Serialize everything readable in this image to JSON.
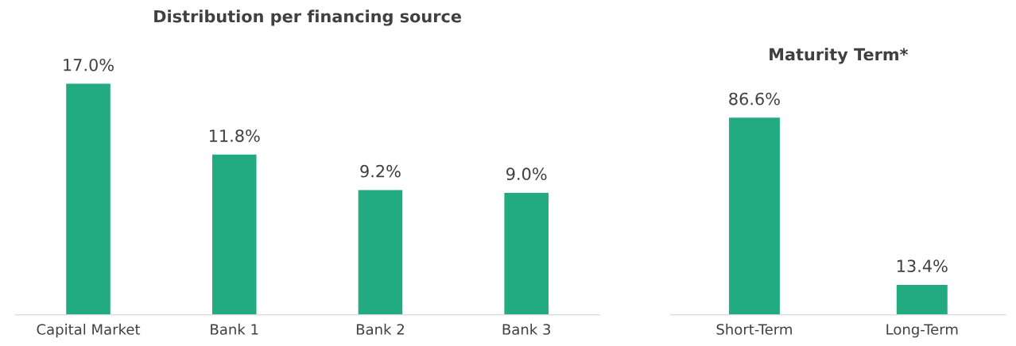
{
  "chart_data": [
    {
      "type": "bar",
      "title": "Distribution per financing source",
      "categories": [
        "Capital Market",
        "Bank 1",
        "Bank 2",
        "Bank 3"
      ],
      "values": [
        17.0,
        11.8,
        9.2,
        9.0
      ],
      "color": "#22aa80",
      "value_labels": [
        "17.0%",
        "11.8%",
        "9.2%",
        "9.0%"
      ],
      "grid": false,
      "legend": false
    },
    {
      "type": "bar",
      "title": "Maturity Term*",
      "categories": [
        "Short-Term",
        "Long-Term"
      ],
      "values": [
        86.6,
        13.4
      ],
      "color": "#22aa80",
      "value_labels": [
        "86.6%",
        "13.4%"
      ],
      "grid": false,
      "legend": false
    }
  ]
}
